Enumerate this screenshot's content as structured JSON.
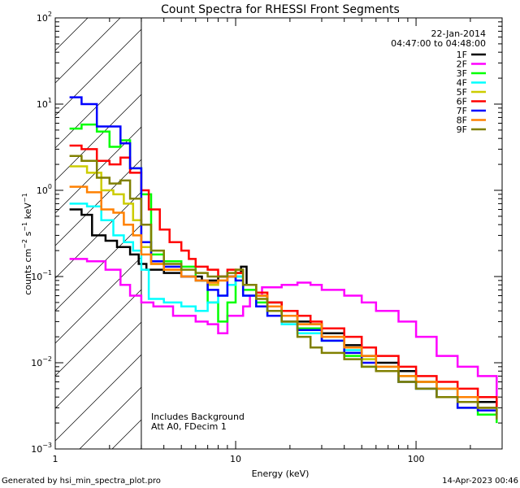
{
  "chart_data": {
    "type": "line",
    "title": "Count Spectra for RHESSI Front Segments",
    "xlabel": "Energy (keV)",
    "ylabel_parts": {
      "base": "counts cm",
      "exp1": "−2",
      "mid": " s",
      "exp2": "−1",
      "end": " keV",
      "exp3": "−1"
    },
    "x_scale": "log",
    "y_scale": "log",
    "xlim": [
      1,
      300
    ],
    "ylim": [
      0.001,
      100
    ],
    "x_ticks": [
      {
        "value": 1,
        "label": "1"
      },
      {
        "value": 10,
        "label": "10"
      },
      {
        "value": 100,
        "label": "100"
      }
    ],
    "y_ticks": [
      {
        "value": 0.001,
        "base": "10",
        "exp": "−3"
      },
      {
        "value": 0.01,
        "base": "10",
        "exp": "−2"
      },
      {
        "value": 0.1,
        "base": "10",
        "exp": "−1"
      },
      {
        "value": 1,
        "base": "10",
        "exp": "0"
      },
      {
        "value": 10,
        "base": "10",
        "exp": "1"
      },
      {
        "value": 100,
        "base": "10",
        "exp": "2"
      }
    ],
    "hatched_region": {
      "x_start": 1,
      "x_end": 3
    },
    "date": "22-Jan-2014",
    "time_range": "04:47:00 to 04:48:00",
    "annotation_lines": [
      "Includes Background",
      "Att A0, FDecim 1"
    ],
    "series": [
      {
        "name": "1F",
        "color": "#000000",
        "points": [
          [
            1.2,
            0.6
          ],
          [
            1.4,
            0.52
          ],
          [
            1.6,
            0.3
          ],
          [
            1.9,
            0.26
          ],
          [
            2.2,
            0.22
          ],
          [
            2.6,
            0.18
          ],
          [
            2.9,
            0.14
          ],
          [
            3.2,
            0.12
          ],
          [
            4,
            0.11
          ],
          [
            5,
            0.1
          ],
          [
            6.5,
            0.09
          ],
          [
            8,
            0.1
          ],
          [
            10,
            0.11
          ],
          [
            10.7,
            0.13
          ],
          [
            11.5,
            0.08
          ],
          [
            13,
            0.06
          ],
          [
            15,
            0.05
          ],
          [
            18,
            0.04
          ],
          [
            22,
            0.03
          ],
          [
            26,
            0.028
          ],
          [
            30,
            0.022
          ],
          [
            40,
            0.016
          ],
          [
            50,
            0.012
          ],
          [
            60,
            0.01
          ],
          [
            80,
            0.008
          ],
          [
            100,
            0.006
          ],
          [
            130,
            0.005
          ],
          [
            170,
            0.004
          ],
          [
            220,
            0.0035
          ],
          [
            280,
            0.003
          ]
        ]
      },
      {
        "name": "2F",
        "color": "#ff00ff",
        "points": [
          [
            1.2,
            0.16
          ],
          [
            1.5,
            0.15
          ],
          [
            1.9,
            0.12
          ],
          [
            2.3,
            0.08
          ],
          [
            2.6,
            0.06
          ],
          [
            3,
            0.05
          ],
          [
            3.5,
            0.045
          ],
          [
            4.5,
            0.035
          ],
          [
            6,
            0.03
          ],
          [
            7,
            0.028
          ],
          [
            8,
            0.022
          ],
          [
            9,
            0.035
          ],
          [
            11,
            0.045
          ],
          [
            12,
            0.06
          ],
          [
            14,
            0.075
          ],
          [
            18,
            0.08
          ],
          [
            22,
            0.085
          ],
          [
            26,
            0.08
          ],
          [
            30,
            0.07
          ],
          [
            40,
            0.06
          ],
          [
            50,
            0.05
          ],
          [
            60,
            0.04
          ],
          [
            80,
            0.03
          ],
          [
            100,
            0.02
          ],
          [
            130,
            0.012
          ],
          [
            170,
            0.009
          ],
          [
            220,
            0.007
          ],
          [
            280,
            0.004
          ]
        ]
      },
      {
        "name": "3F",
        "color": "#00ff00",
        "points": [
          [
            1.2,
            5.2
          ],
          [
            1.4,
            5.8
          ],
          [
            1.7,
            4.8
          ],
          [
            2.0,
            3.2
          ],
          [
            2.3,
            3.8
          ],
          [
            2.6,
            1.8
          ],
          [
            3.0,
            0.9
          ],
          [
            3.4,
            0.18
          ],
          [
            4,
            0.15
          ],
          [
            5,
            0.13
          ],
          [
            6,
            0.09
          ],
          [
            7,
            0.05
          ],
          [
            8,
            0.03
          ],
          [
            9,
            0.05
          ],
          [
            10,
            0.1
          ],
          [
            11,
            0.07
          ],
          [
            13,
            0.05
          ],
          [
            15,
            0.04
          ],
          [
            18,
            0.03
          ],
          [
            22,
            0.025
          ],
          [
            30,
            0.018
          ],
          [
            40,
            0.012
          ],
          [
            50,
            0.009
          ],
          [
            60,
            0.008
          ],
          [
            80,
            0.006
          ],
          [
            100,
            0.005
          ],
          [
            130,
            0.004
          ],
          [
            170,
            0.003
          ],
          [
            220,
            0.0025
          ],
          [
            280,
            0.002
          ]
        ]
      },
      {
        "name": "4F",
        "color": "#00ffff",
        "points": [
          [
            1.2,
            0.7
          ],
          [
            1.5,
            0.65
          ],
          [
            1.8,
            0.45
          ],
          [
            2.1,
            0.3
          ],
          [
            2.4,
            0.25
          ],
          [
            2.7,
            0.2
          ],
          [
            3.0,
            0.12
          ],
          [
            3.3,
            0.055
          ],
          [
            4,
            0.05
          ],
          [
            5,
            0.045
          ],
          [
            6,
            0.04
          ],
          [
            7,
            0.05
          ],
          [
            8,
            0.06
          ],
          [
            9,
            0.08
          ],
          [
            10,
            0.1
          ],
          [
            11,
            0.06
          ],
          [
            13,
            0.045
          ],
          [
            15,
            0.035
          ],
          [
            18,
            0.028
          ],
          [
            22,
            0.022
          ],
          [
            30,
            0.018
          ],
          [
            40,
            0.014
          ],
          [
            50,
            0.011
          ],
          [
            60,
            0.009
          ],
          [
            80,
            0.007
          ],
          [
            100,
            0.006
          ],
          [
            130,
            0.005
          ],
          [
            170,
            0.004
          ],
          [
            220,
            0.003
          ],
          [
            280,
            0.0025
          ]
        ]
      },
      {
        "name": "5F",
        "color": "#cccc00",
        "points": [
          [
            1.2,
            1.9
          ],
          [
            1.5,
            1.6
          ],
          [
            1.8,
            1.0
          ],
          [
            2.1,
            0.9
          ],
          [
            2.4,
            0.7
          ],
          [
            2.7,
            0.45
          ],
          [
            3.0,
            0.22
          ],
          [
            3.4,
            0.14
          ],
          [
            4,
            0.12
          ],
          [
            5,
            0.1
          ],
          [
            6,
            0.09
          ],
          [
            7,
            0.08
          ],
          [
            8,
            0.09
          ],
          [
            9,
            0.1
          ],
          [
            10,
            0.11
          ],
          [
            11,
            0.08
          ],
          [
            13,
            0.06
          ],
          [
            15,
            0.045
          ],
          [
            18,
            0.035
          ],
          [
            22,
            0.028
          ],
          [
            30,
            0.02
          ],
          [
            40,
            0.015
          ],
          [
            50,
            0.011
          ],
          [
            60,
            0.009
          ],
          [
            80,
            0.007
          ],
          [
            100,
            0.006
          ],
          [
            130,
            0.005
          ],
          [
            170,
            0.004
          ],
          [
            220,
            0.003
          ],
          [
            280,
            0.0025
          ]
        ]
      },
      {
        "name": "6F",
        "color": "#ff0000",
        "points": [
          [
            1.2,
            3.3
          ],
          [
            1.4,
            3.0
          ],
          [
            1.7,
            2.2
          ],
          [
            2.0,
            2.0
          ],
          [
            2.3,
            2.4
          ],
          [
            2.6,
            1.6
          ],
          [
            3.0,
            1.0
          ],
          [
            3.3,
            0.6
          ],
          [
            3.8,
            0.35
          ],
          [
            4.3,
            0.25
          ],
          [
            5,
            0.2
          ],
          [
            5.5,
            0.16
          ],
          [
            6,
            0.13
          ],
          [
            7,
            0.12
          ],
          [
            8,
            0.1
          ],
          [
            9,
            0.12
          ],
          [
            10,
            0.11
          ],
          [
            11,
            0.08
          ],
          [
            13,
            0.065
          ],
          [
            15,
            0.05
          ],
          [
            18,
            0.04
          ],
          [
            22,
            0.035
          ],
          [
            26,
            0.03
          ],
          [
            30,
            0.025
          ],
          [
            40,
            0.02
          ],
          [
            50,
            0.015
          ],
          [
            60,
            0.012
          ],
          [
            80,
            0.009
          ],
          [
            100,
            0.007
          ],
          [
            130,
            0.006
          ],
          [
            170,
            0.005
          ],
          [
            220,
            0.004
          ],
          [
            280,
            0.003
          ]
        ]
      },
      {
        "name": "7F",
        "color": "#0000ff",
        "points": [
          [
            1.2,
            12
          ],
          [
            1.4,
            10
          ],
          [
            1.7,
            5.5
          ],
          [
            2.0,
            5.5
          ],
          [
            2.3,
            3.5
          ],
          [
            2.6,
            1.8
          ],
          [
            3.0,
            0.25
          ],
          [
            3.4,
            0.15
          ],
          [
            4,
            0.13
          ],
          [
            5,
            0.1
          ],
          [
            6,
            0.09
          ],
          [
            7,
            0.07
          ],
          [
            8,
            0.06
          ],
          [
            9,
            0.1
          ],
          [
            10,
            0.09
          ],
          [
            11,
            0.06
          ],
          [
            13,
            0.045
          ],
          [
            15,
            0.035
          ],
          [
            18,
            0.03
          ],
          [
            22,
            0.024
          ],
          [
            30,
            0.018
          ],
          [
            40,
            0.013
          ],
          [
            50,
            0.01
          ],
          [
            60,
            0.008
          ],
          [
            80,
            0.006
          ],
          [
            100,
            0.005
          ],
          [
            130,
            0.004
          ],
          [
            170,
            0.003
          ],
          [
            220,
            0.0028
          ],
          [
            280,
            0.0025
          ]
        ]
      },
      {
        "name": "8F",
        "color": "#ff8000",
        "points": [
          [
            1.2,
            1.1
          ],
          [
            1.5,
            0.95
          ],
          [
            1.8,
            0.6
          ],
          [
            2.1,
            0.55
          ],
          [
            2.4,
            0.4
          ],
          [
            2.7,
            0.3
          ],
          [
            3.0,
            0.18
          ],
          [
            3.4,
            0.14
          ],
          [
            4,
            0.12
          ],
          [
            5,
            0.1
          ],
          [
            6,
            0.09
          ],
          [
            7,
            0.085
          ],
          [
            8,
            0.09
          ],
          [
            9,
            0.1
          ],
          [
            10,
            0.12
          ],
          [
            11,
            0.08
          ],
          [
            13,
            0.06
          ],
          [
            15,
            0.045
          ],
          [
            18,
            0.035
          ],
          [
            22,
            0.028
          ],
          [
            30,
            0.02
          ],
          [
            40,
            0.015
          ],
          [
            50,
            0.012
          ],
          [
            60,
            0.009
          ],
          [
            80,
            0.007
          ],
          [
            100,
            0.006
          ],
          [
            130,
            0.005
          ],
          [
            170,
            0.004
          ],
          [
            220,
            0.003
          ],
          [
            280,
            0.0028
          ]
        ]
      },
      {
        "name": "9F",
        "color": "#808000",
        "points": [
          [
            1.2,
            2.5
          ],
          [
            1.4,
            2.2
          ],
          [
            1.7,
            1.4
          ],
          [
            2.0,
            1.2
          ],
          [
            2.3,
            1.3
          ],
          [
            2.6,
            0.8
          ],
          [
            3.0,
            0.4
          ],
          [
            3.4,
            0.2
          ],
          [
            4,
            0.14
          ],
          [
            5,
            0.12
          ],
          [
            6,
            0.11
          ],
          [
            7,
            0.1
          ],
          [
            8,
            0.1
          ],
          [
            9,
            0.11
          ],
          [
            10,
            0.12
          ],
          [
            11,
            0.08
          ],
          [
            13,
            0.055
          ],
          [
            15,
            0.04
          ],
          [
            18,
            0.03
          ],
          [
            22,
            0.02
          ],
          [
            26,
            0.015
          ],
          [
            30,
            0.013
          ],
          [
            40,
            0.011
          ],
          [
            50,
            0.009
          ],
          [
            60,
            0.008
          ],
          [
            80,
            0.006
          ],
          [
            100,
            0.005
          ],
          [
            130,
            0.004
          ],
          [
            170,
            0.0035
          ],
          [
            220,
            0.003
          ],
          [
            280,
            0.0022
          ]
        ]
      }
    ]
  },
  "footer": {
    "generated_by": "Generated by hsi_min_spectra_plot.pro",
    "timestamp": "14-Apr-2023 00:46"
  }
}
